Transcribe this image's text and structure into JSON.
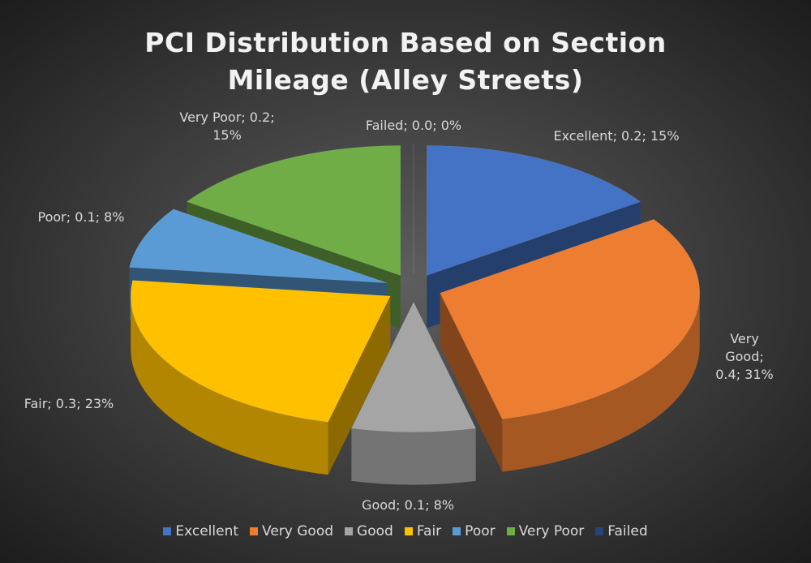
{
  "chart_data": {
    "type": "pie3d",
    "title": "PCI Distribution Based on Section Mileage (Alley Streets)",
    "categories": [
      "Excellent",
      "Very Good",
      "Good",
      "Fair",
      "Poor",
      "Very Poor",
      "Failed"
    ],
    "values": [
      0.2,
      0.4,
      0.1,
      0.3,
      0.1,
      0.2,
      0.0
    ],
    "percents": [
      15,
      31,
      8,
      23,
      8,
      15,
      0
    ],
    "value_labels": [
      "Excellent; 0.2; 15%",
      "Very Good; 0.4; 31%",
      "Good; 0.1; 8%",
      "Fair; 0.3; 23%",
      "Poor; 0.1; 8%",
      "Very Poor; 0.2; 15%",
      "Failed; 0.0; 0%"
    ],
    "colors": [
      "#4472c4",
      "#ed7d31",
      "#a5a5a5",
      "#ffc000",
      "#5b9bd5",
      "#70ad47",
      "#264478"
    ],
    "legend": "bottom"
  }
}
